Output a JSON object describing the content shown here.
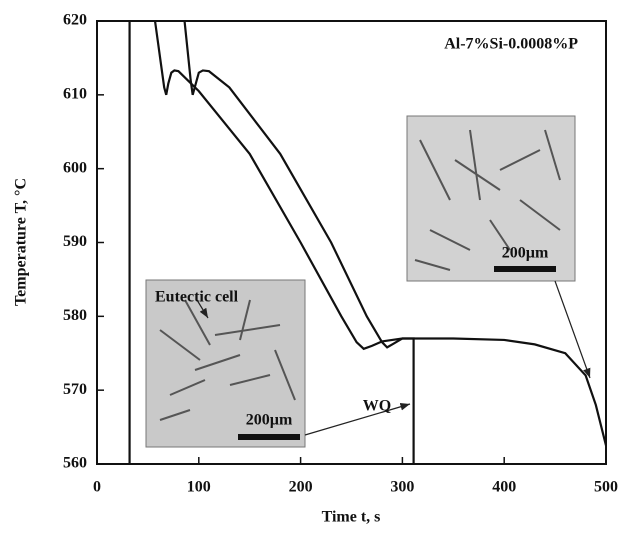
{
  "chart_data": {
    "type": "line",
    "xlabel": "Time t, s",
    "ylabel": "Temperature T, °C",
    "xlim": [
      0,
      500
    ],
    "xticks": [
      0,
      100,
      200,
      300,
      400,
      500
    ],
    "ylim": [
      560,
      620
    ],
    "yticks": [
      560,
      570,
      580,
      590,
      600,
      610,
      620
    ],
    "series": [
      {
        "color": "#111111",
        "x": [
          32,
          32
        ],
        "values": [
          560,
          620
        ]
      },
      {
        "color": "#111111",
        "x": [
          57,
          60,
          63,
          66,
          68,
          70,
          73,
          76,
          80,
          100,
          150,
          200,
          240,
          255,
          262,
          270,
          280,
          290,
          300,
          311,
          311
        ],
        "values": [
          620,
          617,
          614,
          611,
          610,
          611.5,
          613,
          613.3,
          613.2,
          610.5,
          602,
          590,
          580,
          576.5,
          575.6,
          576,
          576.6,
          576.8,
          577,
          577,
          560
        ]
      },
      {
        "color": "#111111",
        "x": [
          86,
          89,
          92,
          94,
          97,
          100,
          104,
          110,
          130,
          180,
          230,
          265,
          280,
          285,
          290,
          300,
          350,
          400,
          430,
          460,
          480,
          490,
          500
        ],
        "values": [
          620,
          616,
          612,
          610,
          611.5,
          613,
          613.3,
          613.2,
          611,
          602,
          590,
          580,
          576.5,
          575.8,
          576.2,
          577,
          577,
          576.8,
          576.2,
          575,
          572,
          568,
          562.5
        ]
      }
    ],
    "annotations": [
      "Al-7%Si-0.0008%P",
      "WQ",
      "Eutectic cell",
      "200µm",
      "200µm"
    ]
  }
}
